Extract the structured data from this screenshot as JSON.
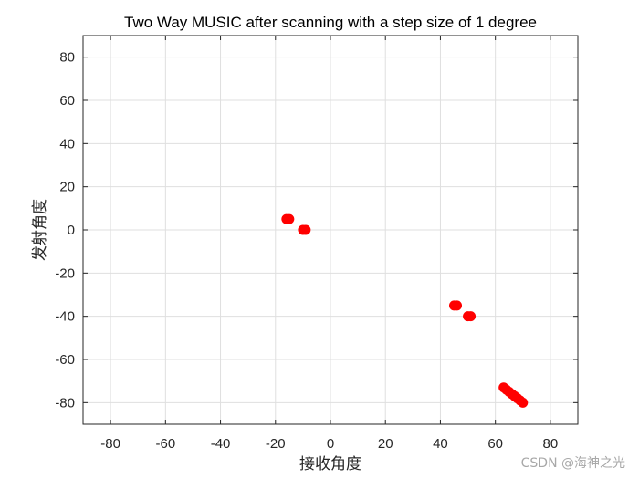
{
  "chart_data": {
    "type": "scatter",
    "title": "Two Way MUSIC after scanning with a step size of 1 degree",
    "xlabel": "接收角度",
    "ylabel": "发射角度",
    "xlim": [
      -90,
      90
    ],
    "ylim": [
      -90,
      90
    ],
    "xticks": [
      -80,
      -60,
      -40,
      -20,
      0,
      20,
      40,
      60,
      80
    ],
    "yticks": [
      -80,
      -60,
      -40,
      -20,
      0,
      20,
      40,
      60,
      80
    ],
    "xtick_labels": [
      "-80",
      "-60",
      "-40",
      "-20",
      "0",
      "20",
      "40",
      "60",
      "80"
    ],
    "ytick_labels": [
      "80",
      "60",
      "40",
      "20",
      "0",
      "-20",
      "-40",
      "-60",
      "-80"
    ],
    "grid": true,
    "marker_color": "#ff0000",
    "series": [
      {
        "points": [
          {
            "x": -16,
            "y": 5
          },
          {
            "x": -15,
            "y": 5
          },
          {
            "x": -10,
            "y": 0
          },
          {
            "x": -9,
            "y": 0
          },
          {
            "x": 45,
            "y": -35
          },
          {
            "x": 46,
            "y": -35
          },
          {
            "x": 50,
            "y": -40
          },
          {
            "x": 51,
            "y": -40
          },
          {
            "x": 63,
            "y": -73
          },
          {
            "x": 64,
            "y": -74
          },
          {
            "x": 65,
            "y": -75
          },
          {
            "x": 66,
            "y": -76
          },
          {
            "x": 67,
            "y": -77
          },
          {
            "x": 68,
            "y": -78
          },
          {
            "x": 69,
            "y": -79
          },
          {
            "x": 70,
            "y": -80
          }
        ]
      }
    ]
  },
  "watermark": "CSDN @海神之光"
}
